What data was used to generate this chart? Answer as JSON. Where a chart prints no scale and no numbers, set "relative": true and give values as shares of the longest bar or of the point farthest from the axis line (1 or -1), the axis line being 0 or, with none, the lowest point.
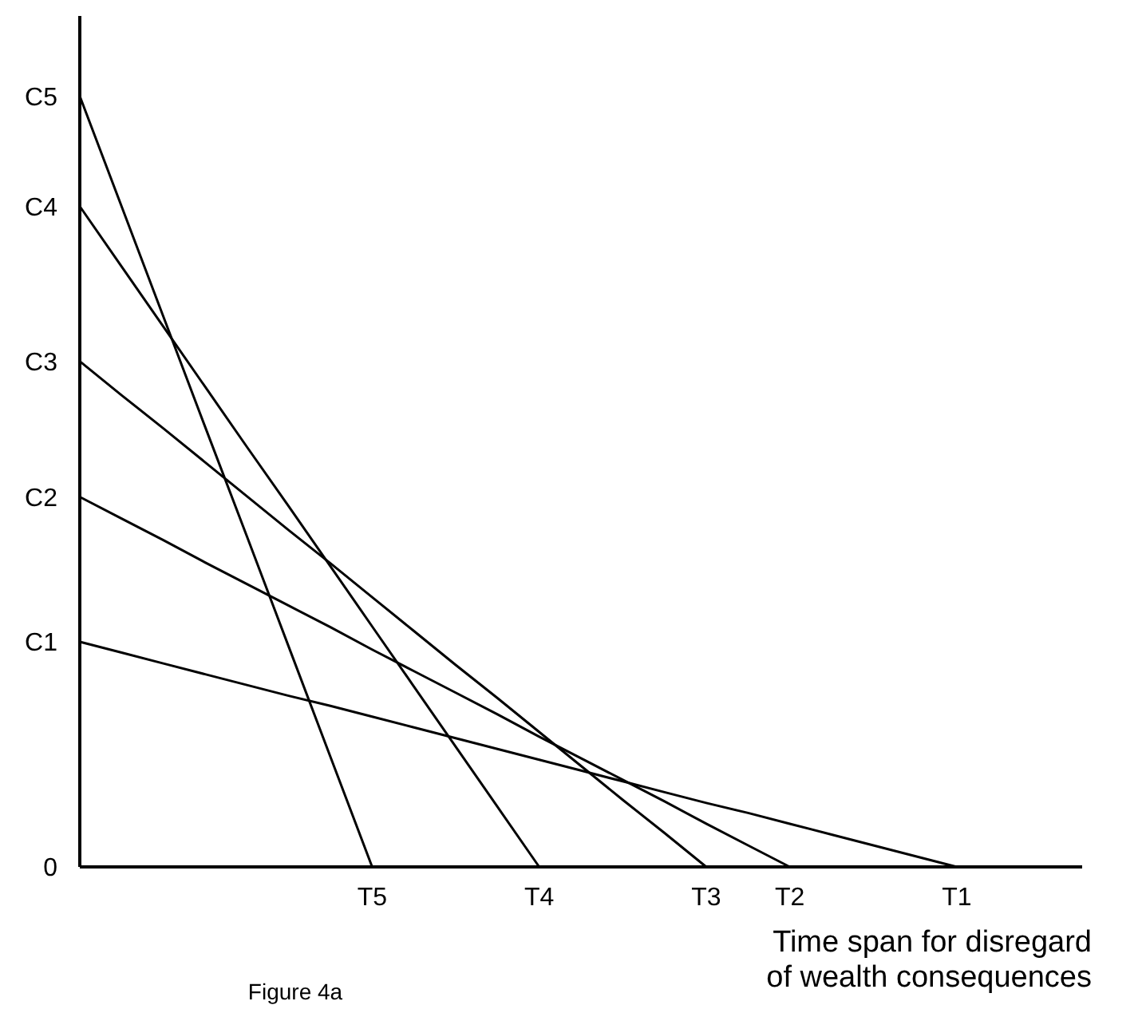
{
  "chart_data": {
    "type": "line",
    "relative": true,
    "xlabel": "Time span for disregard\nof wealth consequences",
    "annotations": [
      "0",
      "Figure 4a"
    ],
    "categories": [
      null,
      null,
      null,
      null,
      null,
      null,
      null,
      "T5",
      null,
      null,
      null,
      "T4",
      null,
      null,
      null,
      "T3",
      null,
      "T2",
      null,
      null,
      null,
      "T1",
      null,
      null,
      null
    ],
    "grid": false,
    "marker": "none",
    "line_style": "solid",
    "series": [
      {
        "name": "C1",
        "color": "#000000",
        "values": [
          0.292,
          0.278,
          0.264,
          0.25,
          0.236,
          0.222,
          0.209,
          0.195,
          0.181,
          0.167,
          0.153,
          0.139,
          0.125,
          0.111,
          0.097,
          0.083,
          0.07,
          0.056,
          0.042,
          0.028,
          0.014,
          0,
          null,
          null,
          null
        ]
      },
      {
        "name": "C2",
        "color": "#000000",
        "values": [
          0.48,
          0.452,
          0.424,
          0.395,
          0.367,
          0.339,
          0.311,
          0.282,
          0.254,
          0.226,
          0.198,
          0.169,
          0.141,
          0.113,
          0.085,
          0.056,
          0.028,
          0,
          null,
          null,
          null,
          null,
          null,
          null,
          null
        ]
      },
      {
        "name": "C3",
        "color": "#000000",
        "values": [
          0.656,
          0.612,
          0.569,
          0.525,
          0.481,
          0.437,
          0.394,
          0.35,
          0.306,
          0.262,
          0.219,
          0.175,
          0.131,
          0.087,
          0.044,
          0,
          null,
          null,
          null,
          null,
          null,
          null,
          null,
          null,
          null
        ]
      },
      {
        "name": "C4",
        "color": "#000000",
        "values": [
          0.857,
          0.779,
          0.701,
          0.623,
          0.545,
          0.468,
          0.39,
          0.312,
          0.234,
          0.156,
          0.078,
          0,
          null,
          null,
          null,
          null,
          null,
          null,
          null,
          null,
          null,
          null,
          null,
          null,
          null
        ]
      },
      {
        "name": "C5",
        "color": "#000000",
        "values": [
          1,
          0.857,
          0.714,
          0.571,
          0.429,
          0.286,
          0.143,
          0,
          null,
          null,
          null,
          null,
          null,
          null,
          null,
          null,
          null,
          null,
          null,
          null,
          null,
          null,
          null,
          null,
          null
        ]
      }
    ]
  }
}
